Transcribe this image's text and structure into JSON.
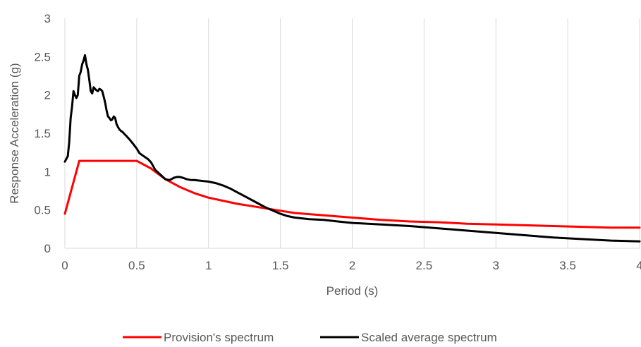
{
  "chart_data": {
    "type": "line",
    "xlabel": "Period (s)",
    "ylabel": "Response Acceleration (g)",
    "xlim": [
      0,
      4
    ],
    "ylim": [
      0,
      3
    ],
    "xticks": [
      0,
      0.5,
      1,
      1.5,
      2,
      2.5,
      3,
      3.5,
      4
    ],
    "xtick_labels": [
      "0",
      "0.5",
      "1",
      "1.5",
      "2",
      "2.5",
      "3",
      "3.5",
      "4"
    ],
    "yticks": [
      0,
      0.5,
      1,
      1.5,
      2,
      2.5,
      3
    ],
    "ytick_labels": [
      "0",
      "0.5",
      "1",
      "1.5",
      "2",
      "2.5",
      "3"
    ],
    "grid": "vertical",
    "legend_position": "bottom",
    "series": [
      {
        "name": "Provision's spectrum",
        "color": "#ff0000",
        "x": [
          0,
          0.1,
          0.5,
          0.6,
          0.7,
          0.8,
          0.9,
          1.0,
          1.1,
          1.2,
          1.3,
          1.4,
          1.5,
          1.6,
          1.8,
          2.0,
          2.2,
          2.4,
          2.6,
          2.8,
          3.0,
          3.2,
          3.4,
          3.6,
          3.8,
          4.0
        ],
        "y": [
          0.45,
          1.14,
          1.14,
          1.04,
          0.9,
          0.8,
          0.72,
          0.66,
          0.62,
          0.58,
          0.55,
          0.52,
          0.49,
          0.46,
          0.43,
          0.4,
          0.37,
          0.35,
          0.34,
          0.32,
          0.31,
          0.3,
          0.29,
          0.28,
          0.27,
          0.27
        ]
      },
      {
        "name": "Scaled average spectrum",
        "color": "#000000",
        "x": [
          0,
          0.02,
          0.03,
          0.04,
          0.05,
          0.06,
          0.07,
          0.08,
          0.09,
          0.1,
          0.11,
          0.12,
          0.13,
          0.14,
          0.15,
          0.16,
          0.17,
          0.18,
          0.19,
          0.2,
          0.21,
          0.22,
          0.23,
          0.24,
          0.25,
          0.26,
          0.27,
          0.28,
          0.29,
          0.3,
          0.31,
          0.32,
          0.33,
          0.34,
          0.35,
          0.36,
          0.37,
          0.38,
          0.39,
          0.4,
          0.41,
          0.42,
          0.43,
          0.45,
          0.48,
          0.5,
          0.52,
          0.55,
          0.58,
          0.6,
          0.63,
          0.66,
          0.7,
          0.73,
          0.76,
          0.78,
          0.8,
          0.82,
          0.85,
          0.88,
          0.9,
          0.95,
          1.0,
          1.05,
          1.1,
          1.15,
          1.2,
          1.25,
          1.3,
          1.35,
          1.4,
          1.45,
          1.5,
          1.55,
          1.6,
          1.7,
          1.8,
          1.9,
          2.0,
          2.2,
          2.4,
          2.6,
          2.8,
          3.0,
          3.2,
          3.4,
          3.6,
          3.8,
          4.0
        ],
        "y": [
          1.13,
          1.2,
          1.38,
          1.7,
          1.85,
          2.05,
          2.0,
          1.96,
          2.0,
          2.25,
          2.3,
          2.4,
          2.45,
          2.52,
          2.4,
          2.33,
          2.2,
          2.05,
          2.02,
          2.1,
          2.08,
          2.06,
          2.05,
          2.08,
          2.07,
          2.05,
          1.98,
          1.9,
          1.8,
          1.72,
          1.7,
          1.67,
          1.68,
          1.72,
          1.7,
          1.62,
          1.58,
          1.55,
          1.53,
          1.52,
          1.5,
          1.48,
          1.46,
          1.42,
          1.35,
          1.3,
          1.24,
          1.2,
          1.16,
          1.12,
          1.02,
          0.97,
          0.9,
          0.89,
          0.92,
          0.93,
          0.93,
          0.92,
          0.9,
          0.89,
          0.89,
          0.88,
          0.87,
          0.85,
          0.82,
          0.78,
          0.73,
          0.68,
          0.63,
          0.58,
          0.53,
          0.49,
          0.45,
          0.42,
          0.4,
          0.38,
          0.37,
          0.35,
          0.33,
          0.31,
          0.29,
          0.26,
          0.23,
          0.2,
          0.17,
          0.14,
          0.12,
          0.1,
          0.09
        ]
      }
    ]
  }
}
